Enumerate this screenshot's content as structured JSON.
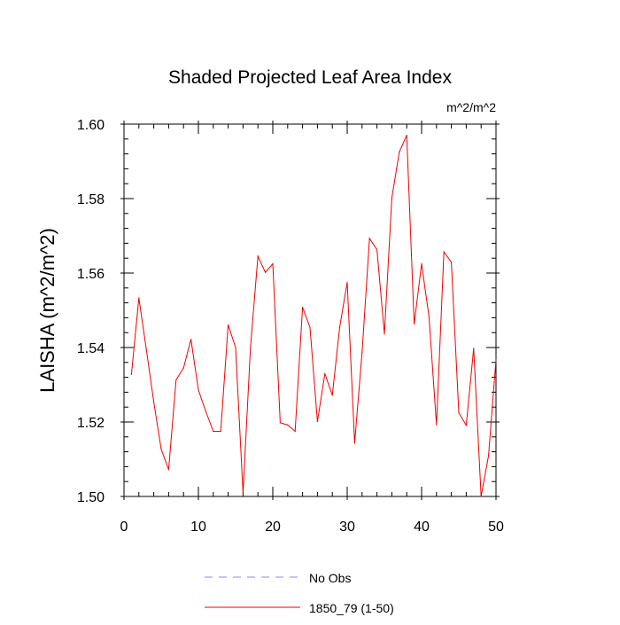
{
  "chart_data": {
    "type": "line",
    "title": "Shaded Projected Leaf Area Index",
    "units": "m^2/m^2",
    "ylabel": "LAISHA  (m^2/m^2)",
    "xlabel": "",
    "xlim": [
      0,
      50
    ],
    "ylim": [
      1.5,
      1.6
    ],
    "x_ticks": [
      0,
      10,
      20,
      30,
      40,
      50
    ],
    "x_tick_labels": [
      "0",
      "10",
      "20",
      "30",
      "40",
      "50"
    ],
    "y_ticks": [
      1.5,
      1.52,
      1.54,
      1.56,
      1.58,
      1.6
    ],
    "y_tick_labels": [
      "1.50",
      "1.52",
      "1.54",
      "1.56",
      "1.58",
      "1.60"
    ],
    "grid": false,
    "legend_position": "bottom-center",
    "series": [
      {
        "name": "No Obs",
        "color": "#8888ee",
        "style": "dashed",
        "x": [],
        "values": []
      },
      {
        "name": "1850_79 (1-50)",
        "color": "#ee0000",
        "style": "solid",
        "x": [
          1,
          2,
          3,
          4,
          5,
          6,
          7,
          8,
          9,
          10,
          11,
          12,
          13,
          14,
          15,
          16,
          17,
          18,
          19,
          20,
          21,
          22,
          23,
          24,
          25,
          26,
          27,
          28,
          29,
          30,
          31,
          32,
          33,
          34,
          35,
          36,
          37,
          38,
          39,
          40,
          41,
          42,
          43,
          44,
          45,
          46,
          47,
          48,
          49,
          50
        ],
        "values": [
          1.5328,
          1.5533,
          1.5395,
          1.5254,
          1.5127,
          1.5072,
          1.5313,
          1.5345,
          1.5422,
          1.5286,
          1.5228,
          1.5175,
          1.5175,
          1.5461,
          1.54,
          1.501,
          1.54,
          1.5645,
          1.5602,
          1.5625,
          1.5198,
          1.5192,
          1.5175,
          1.5508,
          1.5454,
          1.5201,
          1.533,
          1.5272,
          1.5456,
          1.5575,
          1.5143,
          1.5387,
          1.5693,
          1.5663,
          1.5436,
          1.5802,
          1.5925,
          1.597,
          1.5463,
          1.5625,
          1.5482,
          1.5192,
          1.5657,
          1.5629,
          1.5225,
          1.5191,
          1.5398,
          1.5,
          1.511,
          1.5368
        ]
      }
    ]
  }
}
